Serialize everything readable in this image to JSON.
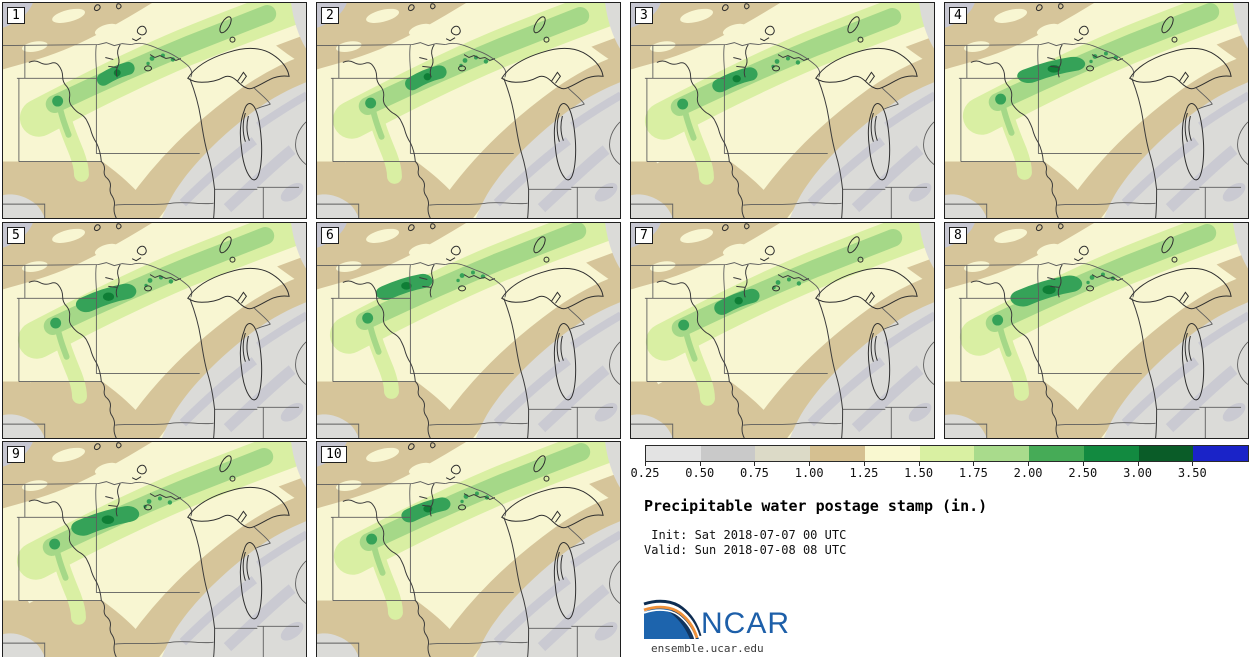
{
  "product": {
    "title": "Precipitable water postage stamp (in.)",
    "init_line": " Init: Sat 2018-07-07 00 UTC",
    "valid_line": "Valid: Sun 2018-07-08 08 UTC",
    "site_url": "ensemble.ucar.edu",
    "logo_text": "NCAR",
    "units": "in."
  },
  "members": [
    {
      "label": "1"
    },
    {
      "label": "2"
    },
    {
      "label": "3"
    },
    {
      "label": "4"
    },
    {
      "label": "5"
    },
    {
      "label": "6"
    },
    {
      "label": "7"
    },
    {
      "label": "8"
    },
    {
      "label": "9"
    },
    {
      "label": "10"
    }
  ],
  "colorbar": {
    "tick_labels": [
      "0.25",
      "0.50",
      "0.75",
      "1.00",
      "1.25",
      "1.50",
      "1.75",
      "2.00",
      "2.50",
      "3.00",
      "3.50"
    ],
    "segment_colors": [
      "#e3e3e3",
      "#c9c9c9",
      "#dcdac7",
      "#d5c091",
      "#f9f8d0",
      "#d9f0a2",
      "#a9db8c",
      "#46ab57",
      "#128a40",
      "#0a5c28",
      "#1a23c8"
    ],
    "segment_ranges": [
      "0.25-0.50",
      "0.50-0.75",
      "0.75-1.00",
      "1.00-1.25",
      "1.25-1.50",
      "1.50-1.75",
      "1.75-2.00",
      "2.00-2.50",
      "2.50-3.00",
      "3.00-3.50",
      "> 3.50"
    ]
  },
  "map_palette": {
    "cream": "#f8f6d2",
    "tan": "#d6c59a",
    "gray_low": "#dbdbd8",
    "gray_mid": "#c7c7d1",
    "green1": "#d9efa3",
    "green2": "#a5d888",
    "green3": "#35a258",
    "green4": "#0f7e36",
    "line": "#5d5d5d",
    "river": "#3b3b3b",
    "lake": "#2e2e2e"
  },
  "logo_colors": {
    "blue": "#1d64ad",
    "navy": "#0e2d52",
    "orange": "#f0913a",
    "wordmark": "#1d5fa9"
  }
}
